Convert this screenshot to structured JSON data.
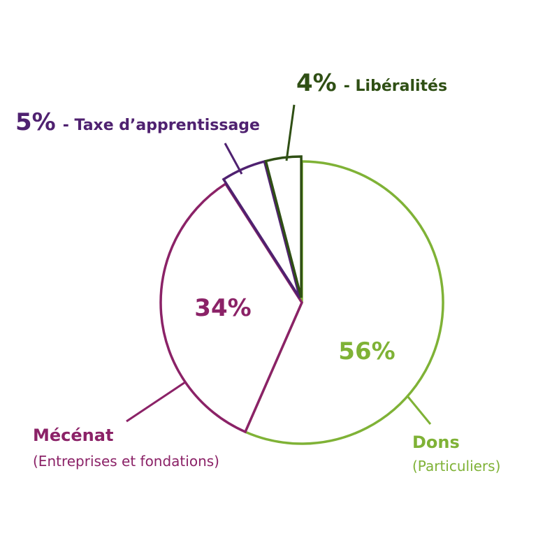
{
  "chart_data": {
    "type": "pie",
    "slices": [
      {
        "key": "dons",
        "value": 56,
        "pct_label": "56%",
        "name": "Dons",
        "sub": "(Particuliers)",
        "color": "#7fb236"
      },
      {
        "key": "mecenat",
        "value": 34,
        "pct_label": "34%",
        "name": "Mécénat",
        "sub": "(Entreprises et fondations)",
        "color": "#8b2267"
      },
      {
        "key": "taxe",
        "value": 5,
        "pct_label": "5%",
        "name": "- Taxe d’apprentissage",
        "sub": "",
        "color": "#4f2170"
      },
      {
        "key": "liberalites",
        "value": 4,
        "pct_label": "4%",
        "name": "- Libéralités",
        "sub": "",
        "color": "#2f4f14"
      }
    ],
    "legend": "none",
    "grid": false
  }
}
